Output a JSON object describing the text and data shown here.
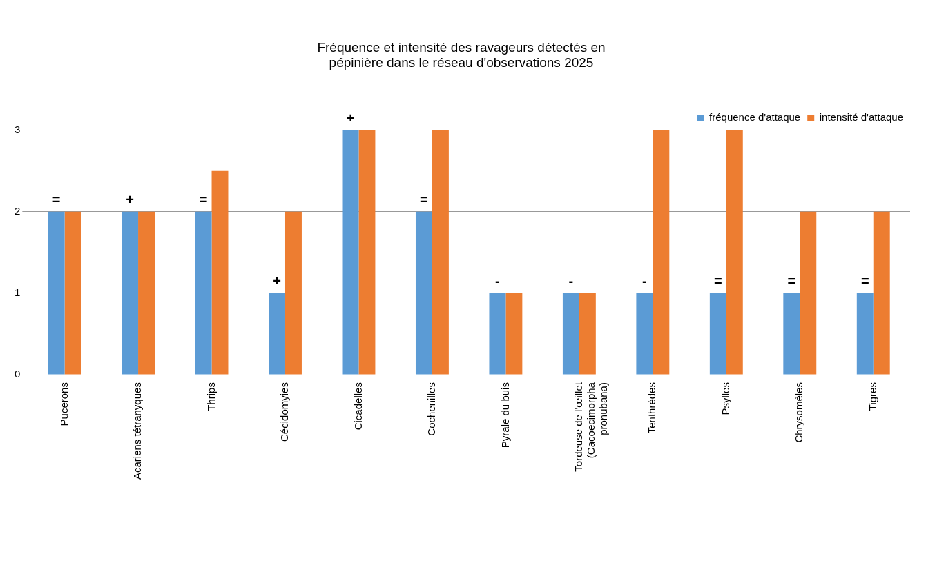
{
  "chart_data": {
    "type": "bar",
    "title": "Fréquence et intensité des ravageurs détectés en pépinière dans le réseau d'observations 2025",
    "categories": [
      "Pucerons",
      "Acariens tétranyques",
      "Thrips",
      "Cécidomyies",
      "Cicadelles",
      "Cochenilles",
      "Pyrale du buis",
      "Tordeuse de l'œillet (Cacoecimorpha pronubana)",
      "Tenthrèdes",
      "Psylles",
      "Chrysomèles",
      "Tigres"
    ],
    "series": [
      {
        "name": "fréquence d'attaque",
        "color": "#5b9bd5",
        "values": [
          2,
          2,
          2,
          1,
          3,
          2,
          1,
          1,
          1,
          1,
          1,
          1
        ]
      },
      {
        "name": "intensité d'attaque",
        "color": "#ed7d31",
        "values": [
          2,
          2,
          2.5,
          2,
          3,
          3,
          1,
          1,
          3,
          3,
          2,
          2
        ]
      }
    ],
    "ylim": [
      0,
      3
    ],
    "yticks": [
      0,
      1,
      2,
      3
    ],
    "grid": "y",
    "legend": "top right",
    "annotations": [
      {
        "text": "=",
        "x": "Pucerons",
        "y": 2
      },
      {
        "text": "+",
        "x": "Acariens tétranyques",
        "y": 2
      },
      {
        "text": "=",
        "x": "Thrips",
        "y": 2
      },
      {
        "text": "+",
        "x": "Cécidomyies",
        "y": 1
      },
      {
        "text": "+",
        "x": "Cicadelles",
        "y": 3
      },
      {
        "text": "=",
        "x": "Cochenilles",
        "y": 2
      },
      {
        "text": "-",
        "x": "Pyrale du buis",
        "y": 1
      },
      {
        "text": "-",
        "x": "Tordeuse de l'œillet (Cacoecimorpha pronubana)",
        "y": 1
      },
      {
        "text": "-",
        "x": "Tenthrèdes",
        "y": 1
      },
      {
        "text": "=",
        "x": "Psylles",
        "y": 1
      },
      {
        "text": "=",
        "x": "Chrysomèles",
        "y": 1
      },
      {
        "text": "=",
        "x": "Tigres",
        "y": 1
      }
    ]
  }
}
